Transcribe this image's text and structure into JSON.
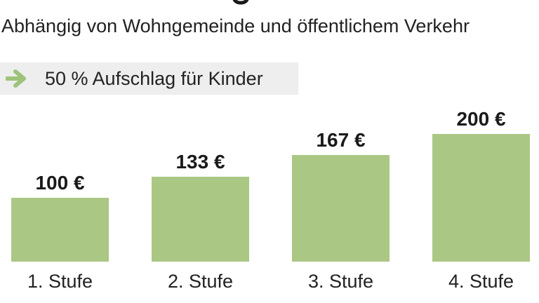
{
  "subtitle": "Abhängig von Wohngemeinde und öffentlichem Verkehr",
  "note": {
    "icon": "arrow-right-icon",
    "icon_color": "#9dc27a",
    "text": "50 % Aufschlag für Kinder"
  },
  "colors": {
    "bar": "#abc784",
    "note_background": "#eeeeee"
  },
  "chart_data": {
    "type": "bar",
    "categories": [
      "1. Stufe",
      "2. Stufe",
      "3. Stufe",
      "4. Stufe"
    ],
    "values": [
      100,
      133,
      167,
      200
    ],
    "data_labels": [
      "100 €",
      "133 €",
      "167 €",
      "200 €"
    ],
    "title": "",
    "xlabel": "",
    "ylabel": "",
    "ylim": [
      0,
      200
    ],
    "grid": false,
    "legend": "none"
  }
}
